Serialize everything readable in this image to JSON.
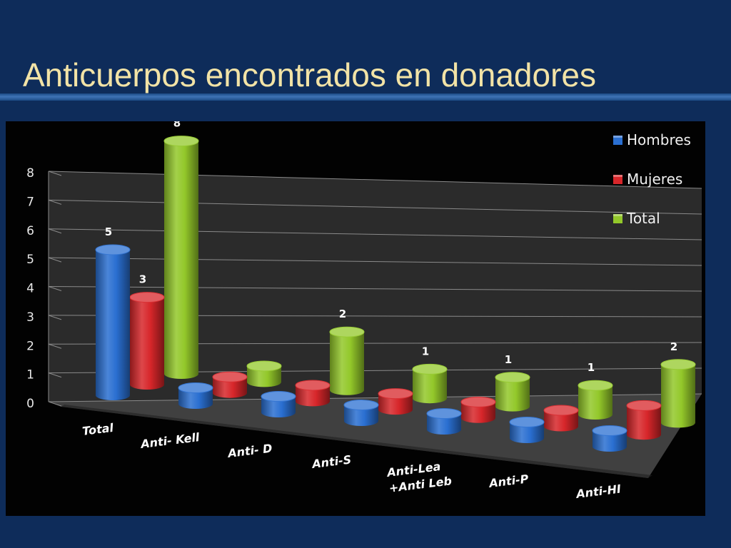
{
  "slide": {
    "title": "Anticuerpos encontrados en donadores"
  },
  "chart_data": {
    "type": "bar",
    "style": "3d-cylinder",
    "categories": [
      "Total",
      "Anti- Kell",
      "Anti- D",
      "Anti-S",
      "Anti-Lea\n+Anti Leb",
      "Anti-P",
      "Anti-HI"
    ],
    "series": [
      {
        "name": "Hombres",
        "color": "#2a6fd1",
        "values": [
          5,
          0,
          0,
          0,
          0,
          0,
          0
        ]
      },
      {
        "name": "Mujeres",
        "color": "#d7262a",
        "values": [
          3,
          0,
          0,
          0,
          0,
          0,
          1
        ]
      },
      {
        "name": "Total",
        "color": "#93c82a",
        "values": [
          8,
          0,
          2,
          1,
          1,
          1,
          2
        ]
      }
    ],
    "data_labels": {
      "Hombres": [
        "5",
        "",
        "",
        "",
        "",
        "",
        ""
      ],
      "Mujeres": [
        "3",
        "",
        "",
        "",
        "",
        "",
        ""
      ],
      "Total": [
        "8",
        "",
        "2",
        "1",
        "1",
        "1",
        "2"
      ]
    },
    "yticks": [
      0,
      1,
      2,
      3,
      4,
      5,
      6,
      7,
      8
    ],
    "ylim": [
      0,
      8
    ],
    "grid": true,
    "legend_position": "top-right"
  }
}
